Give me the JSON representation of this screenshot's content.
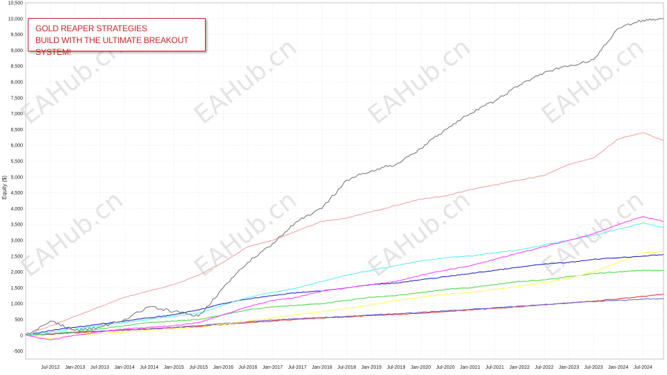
{
  "chart_data": {
    "type": "line",
    "ylabel": "Equity ($)",
    "ylim": [
      -750,
      10500
    ],
    "yticks": [
      -500,
      0,
      500,
      1000,
      1500,
      2000,
      2500,
      3000,
      3500,
      4000,
      4500,
      5000,
      5500,
      6000,
      6500,
      7000,
      7500,
      8000,
      8500,
      9000,
      9500,
      10000,
      10500
    ],
    "ytick_labels": [
      "-500",
      "0",
      "500",
      "1,000",
      "1,500",
      "2,000",
      "2,500",
      "3,000",
      "3,500",
      "4,000",
      "4,500",
      "5,000",
      "5,500",
      "6,000",
      "6,500",
      "7,000",
      "7,500",
      "8,000",
      "8,500",
      "9,000",
      "9,500",
      "10,000",
      "10,500"
    ],
    "xlim": [
      "2012-01",
      "2024-12"
    ],
    "xtick_labels": [
      "Jul-2012",
      "Jan-2013",
      "Jul-2013",
      "Jan-2014",
      "Jul-2014",
      "Jan-2015",
      "Jul-2015",
      "Jan-2016",
      "Jul-2016",
      "Jan-2017",
      "Jul-2017",
      "Jan-2018",
      "Jul-2018",
      "Jan-2019",
      "Jul-2019",
      "Jan-2020",
      "Jul-2020",
      "Jan-2021",
      "Jul-2021",
      "Jan-2022",
      "Jul-2022",
      "Jan-2023",
      "Jul-2023",
      "Jan-2024",
      "Jul-2024"
    ],
    "xtick_values": [
      "2012-07",
      "2013-01",
      "2013-07",
      "2014-01",
      "2014-07",
      "2015-01",
      "2015-07",
      "2016-01",
      "2016-07",
      "2017-01",
      "2017-07",
      "2018-01",
      "2018-07",
      "2019-01",
      "2019-07",
      "2020-01",
      "2020-07",
      "2021-01",
      "2021-07",
      "2022-01",
      "2022-07",
      "2023-01",
      "2023-07",
      "2024-01",
      "2024-07"
    ],
    "grid": true,
    "series": [
      {
        "color": "#7a7a7a",
        "points": [
          [
            "2012-01",
            0
          ],
          [
            "2012-07",
            450
          ],
          [
            "2013-01",
            150
          ],
          [
            "2013-07",
            250
          ],
          [
            "2014-01",
            500
          ],
          [
            "2014-07",
            900
          ],
          [
            "2015-01",
            750
          ],
          [
            "2015-07",
            600
          ],
          [
            "2016-01",
            1500
          ],
          [
            "2016-07",
            2300
          ],
          [
            "2017-01",
            2900
          ],
          [
            "2017-07",
            3600
          ],
          [
            "2018-01",
            4000
          ],
          [
            "2018-07",
            4900
          ],
          [
            "2019-01",
            5200
          ],
          [
            "2019-07",
            5400
          ],
          [
            "2020-01",
            5900
          ],
          [
            "2020-07",
            6500
          ],
          [
            "2021-01",
            7000
          ],
          [
            "2021-07",
            7400
          ],
          [
            "2022-01",
            7900
          ],
          [
            "2022-07",
            8300
          ],
          [
            "2023-01",
            8500
          ],
          [
            "2023-07",
            8700
          ],
          [
            "2024-01",
            9700
          ],
          [
            "2024-07",
            9950
          ],
          [
            "2024-12",
            10000
          ]
        ]
      },
      {
        "color": "#f4a3a3",
        "points": [
          [
            "2012-01",
            0
          ],
          [
            "2012-07",
            300
          ],
          [
            "2013-01",
            600
          ],
          [
            "2013-07",
            900
          ],
          [
            "2014-01",
            1200
          ],
          [
            "2014-07",
            1400
          ],
          [
            "2015-01",
            1600
          ],
          [
            "2015-07",
            1900
          ],
          [
            "2016-01",
            2300
          ],
          [
            "2016-07",
            2800
          ],
          [
            "2017-01",
            3000
          ],
          [
            "2017-07",
            3300
          ],
          [
            "2018-01",
            3600
          ],
          [
            "2018-07",
            3700
          ],
          [
            "2019-01",
            3900
          ],
          [
            "2019-07",
            4100
          ],
          [
            "2020-01",
            4300
          ],
          [
            "2020-07",
            4400
          ],
          [
            "2021-01",
            4600
          ],
          [
            "2021-07",
            4750
          ],
          [
            "2022-01",
            4900
          ],
          [
            "2022-07",
            5050
          ],
          [
            "2023-01",
            5400
          ],
          [
            "2023-07",
            5600
          ],
          [
            "2024-01",
            6200
          ],
          [
            "2024-07",
            6400
          ],
          [
            "2024-12",
            6150
          ]
        ]
      },
      {
        "color": "#ff44ff",
        "points": [
          [
            "2012-01",
            0
          ],
          [
            "2012-07",
            -150
          ],
          [
            "2013-01",
            0
          ],
          [
            "2013-07",
            100
          ],
          [
            "2014-01",
            200
          ],
          [
            "2014-07",
            250
          ],
          [
            "2015-01",
            300
          ],
          [
            "2015-07",
            400
          ],
          [
            "2016-01",
            650
          ],
          [
            "2016-07",
            900
          ],
          [
            "2017-01",
            1100
          ],
          [
            "2017-07",
            1200
          ],
          [
            "2018-01",
            1400
          ],
          [
            "2018-07",
            1500
          ],
          [
            "2019-01",
            1600
          ],
          [
            "2019-07",
            1700
          ],
          [
            "2020-01",
            1900
          ],
          [
            "2020-07",
            2050
          ],
          [
            "2021-01",
            2200
          ],
          [
            "2021-07",
            2400
          ],
          [
            "2022-01",
            2600
          ],
          [
            "2022-07",
            2800
          ],
          [
            "2023-01",
            3000
          ],
          [
            "2023-07",
            3200
          ],
          [
            "2024-01",
            3500
          ],
          [
            "2024-07",
            3750
          ],
          [
            "2024-12",
            3600
          ]
        ]
      },
      {
        "color": "#5ef0f0",
        "points": [
          [
            "2012-01",
            0
          ],
          [
            "2012-07",
            100
          ],
          [
            "2013-01",
            200
          ],
          [
            "2013-07",
            300
          ],
          [
            "2014-01",
            400
          ],
          [
            "2014-07",
            500
          ],
          [
            "2015-01",
            600
          ],
          [
            "2015-07",
            700
          ],
          [
            "2016-01",
            950
          ],
          [
            "2016-07",
            1200
          ],
          [
            "2017-01",
            1350
          ],
          [
            "2017-07",
            1500
          ],
          [
            "2018-01",
            1700
          ],
          [
            "2018-07",
            1900
          ],
          [
            "2019-01",
            2050
          ],
          [
            "2019-07",
            2200
          ],
          [
            "2020-01",
            2350
          ],
          [
            "2020-07",
            2450
          ],
          [
            "2021-01",
            2500
          ],
          [
            "2021-07",
            2600
          ],
          [
            "2022-01",
            2700
          ],
          [
            "2022-07",
            2850
          ],
          [
            "2023-01",
            3000
          ],
          [
            "2023-07",
            3150
          ],
          [
            "2024-01",
            3350
          ],
          [
            "2024-07",
            3550
          ],
          [
            "2024-12",
            3400
          ]
        ]
      },
      {
        "color": "#2727c8",
        "points": [
          [
            "2012-01",
            0
          ],
          [
            "2012-07",
            150
          ],
          [
            "2013-01",
            250
          ],
          [
            "2013-07",
            350
          ],
          [
            "2014-01",
            450
          ],
          [
            "2014-07",
            550
          ],
          [
            "2015-01",
            650
          ],
          [
            "2015-07",
            800
          ],
          [
            "2016-01",
            1000
          ],
          [
            "2016-07",
            1150
          ],
          [
            "2017-01",
            1250
          ],
          [
            "2017-07",
            1350
          ],
          [
            "2018-01",
            1400
          ],
          [
            "2018-07",
            1500
          ],
          [
            "2019-01",
            1600
          ],
          [
            "2019-07",
            1650
          ],
          [
            "2020-01",
            1750
          ],
          [
            "2020-07",
            1850
          ],
          [
            "2021-01",
            1950
          ],
          [
            "2021-07",
            2050
          ],
          [
            "2022-01",
            2150
          ],
          [
            "2022-07",
            2250
          ],
          [
            "2023-01",
            2300
          ],
          [
            "2023-07",
            2400
          ],
          [
            "2024-01",
            2450
          ],
          [
            "2024-07",
            2500
          ],
          [
            "2024-12",
            2550
          ]
        ]
      },
      {
        "color": "#ffff55",
        "points": [
          [
            "2012-01",
            0
          ],
          [
            "2012-07",
            -100
          ],
          [
            "2013-01",
            0
          ],
          [
            "2013-07",
            50
          ],
          [
            "2014-01",
            100
          ],
          [
            "2014-07",
            150
          ],
          [
            "2015-01",
            200
          ],
          [
            "2015-07",
            250
          ],
          [
            "2016-01",
            350
          ],
          [
            "2016-07",
            450
          ],
          [
            "2017-01",
            550
          ],
          [
            "2017-07",
            650
          ],
          [
            "2018-01",
            750
          ],
          [
            "2018-07",
            850
          ],
          [
            "2019-01",
            950
          ],
          [
            "2019-07",
            1100
          ],
          [
            "2020-01",
            1200
          ],
          [
            "2020-07",
            1300
          ],
          [
            "2021-01",
            1350
          ],
          [
            "2021-07",
            1450
          ],
          [
            "2022-01",
            1550
          ],
          [
            "2022-07",
            1650
          ],
          [
            "2023-01",
            1800
          ],
          [
            "2023-07",
            2000
          ],
          [
            "2024-01",
            2300
          ],
          [
            "2024-07",
            2600
          ],
          [
            "2024-12",
            2650
          ]
        ]
      },
      {
        "color": "#4fd84f",
        "points": [
          [
            "2012-01",
            0
          ],
          [
            "2012-07",
            50
          ],
          [
            "2013-01",
            100
          ],
          [
            "2013-07",
            200
          ],
          [
            "2014-01",
            300
          ],
          [
            "2014-07",
            400
          ],
          [
            "2015-01",
            450
          ],
          [
            "2015-07",
            500
          ],
          [
            "2016-01",
            650
          ],
          [
            "2016-07",
            800
          ],
          [
            "2017-01",
            900
          ],
          [
            "2017-07",
            950
          ],
          [
            "2018-01",
            1000
          ],
          [
            "2018-07",
            1100
          ],
          [
            "2019-01",
            1200
          ],
          [
            "2019-07",
            1250
          ],
          [
            "2020-01",
            1350
          ],
          [
            "2020-07",
            1450
          ],
          [
            "2021-01",
            1500
          ],
          [
            "2021-07",
            1600
          ],
          [
            "2022-01",
            1700
          ],
          [
            "2022-07",
            1750
          ],
          [
            "2023-01",
            1850
          ],
          [
            "2023-07",
            1950
          ],
          [
            "2024-01",
            2000
          ],
          [
            "2024-07",
            2050
          ],
          [
            "2024-12",
            2050
          ]
        ]
      },
      {
        "color": "#6a6ad6",
        "points": [
          [
            "2012-01",
            0
          ],
          [
            "2012-07",
            50
          ],
          [
            "2013-01",
            100
          ],
          [
            "2013-07",
            130
          ],
          [
            "2014-01",
            170
          ],
          [
            "2014-07",
            200
          ],
          [
            "2015-01",
            250
          ],
          [
            "2015-07",
            300
          ],
          [
            "2016-01",
            370
          ],
          [
            "2016-07",
            430
          ],
          [
            "2017-01",
            480
          ],
          [
            "2017-07",
            520
          ],
          [
            "2018-01",
            560
          ],
          [
            "2018-07",
            600
          ],
          [
            "2019-01",
            640
          ],
          [
            "2019-07",
            680
          ],
          [
            "2020-01",
            720
          ],
          [
            "2020-07",
            770
          ],
          [
            "2021-01",
            820
          ],
          [
            "2021-07",
            870
          ],
          [
            "2022-01",
            920
          ],
          [
            "2022-07",
            970
          ],
          [
            "2023-01",
            1020
          ],
          [
            "2023-07",
            1060
          ],
          [
            "2024-01",
            1100
          ],
          [
            "2024-07",
            1140
          ],
          [
            "2024-12",
            1160
          ]
        ]
      },
      {
        "color": "#ee3333",
        "points": [
          [
            "2012-01",
            0
          ],
          [
            "2012-07",
            30
          ],
          [
            "2013-01",
            80
          ],
          [
            "2013-07",
            120
          ],
          [
            "2014-01",
            160
          ],
          [
            "2014-07",
            200
          ],
          [
            "2015-01",
            240
          ],
          [
            "2015-07",
            280
          ],
          [
            "2016-01",
            340
          ],
          [
            "2016-07",
            400
          ],
          [
            "2017-01",
            450
          ],
          [
            "2017-07",
            500
          ],
          [
            "2018-01",
            540
          ],
          [
            "2018-07",
            580
          ],
          [
            "2019-01",
            620
          ],
          [
            "2019-07",
            660
          ],
          [
            "2020-01",
            700
          ],
          [
            "2020-07",
            750
          ],
          [
            "2021-01",
            800
          ],
          [
            "2021-07",
            850
          ],
          [
            "2022-01",
            900
          ],
          [
            "2022-07",
            960
          ],
          [
            "2023-01",
            1020
          ],
          [
            "2023-07",
            1080
          ],
          [
            "2024-01",
            1150
          ],
          [
            "2024-07",
            1230
          ],
          [
            "2024-12",
            1300
          ]
        ]
      }
    ],
    "watermark": "EAHub.cn"
  },
  "banner": {
    "line1": "GOLD REAPER STRATEGIES",
    "line2": "BUILD WITH THE ULTIMATE BREAKOUT SYSTEM!"
  }
}
